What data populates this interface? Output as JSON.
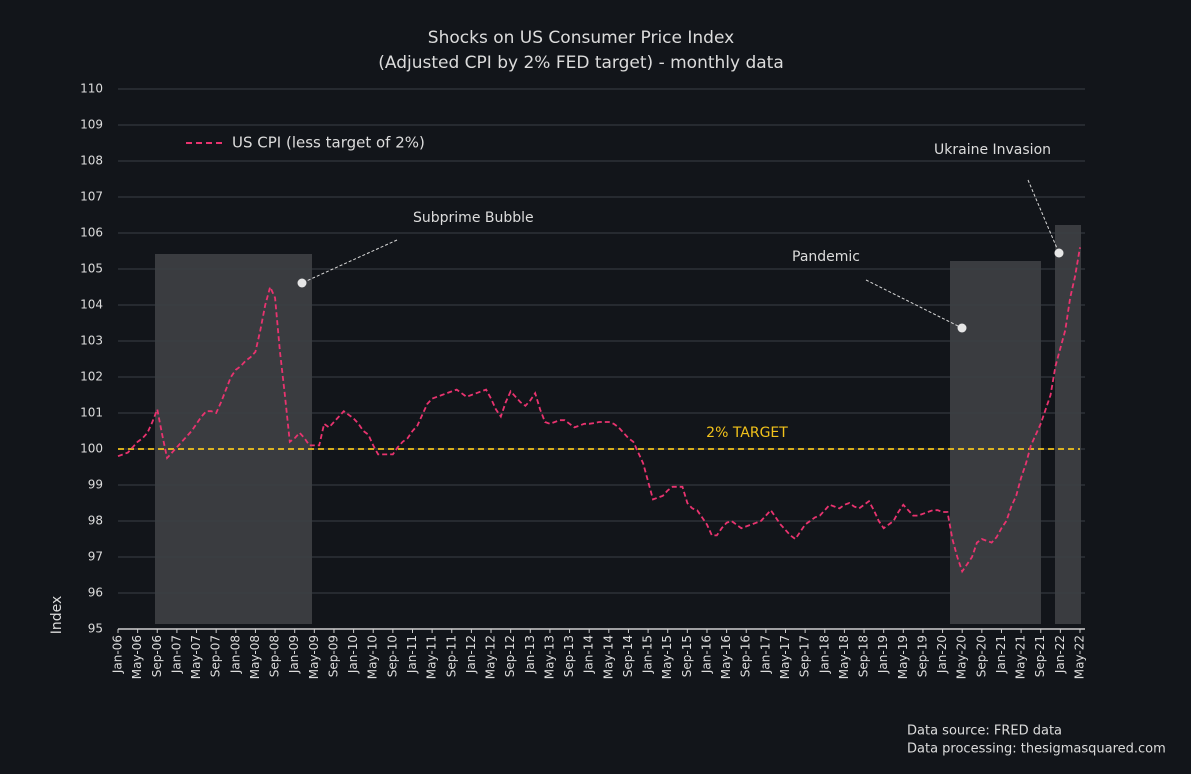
{
  "chart_data": {
    "type": "line",
    "title": "Shocks on US Consumer Price Index",
    "subtitle": "(Adjusted CPI by 2% FED target) - monthly data",
    "y_label": "Index",
    "categories": [
      "Jan-06",
      null,
      null,
      null,
      "May-06",
      null,
      null,
      null,
      "Sep-06",
      null,
      null,
      null,
      "Jan-07",
      null,
      null,
      null,
      "May-07",
      null,
      null,
      null,
      "Sep-07",
      null,
      null,
      null,
      "Jan-08",
      null,
      null,
      null,
      "May-08",
      null,
      null,
      null,
      "Sep-08",
      null,
      null,
      null,
      "Jan-09",
      null,
      null,
      null,
      "May-09",
      null,
      null,
      null,
      "Sep-09",
      null,
      null,
      null,
      "Jan-10",
      null,
      null,
      null,
      "May-10",
      null,
      null,
      null,
      "Sep-10",
      null,
      null,
      null,
      "Jan-11",
      null,
      null,
      null,
      "May-11",
      null,
      null,
      null,
      "Sep-11",
      null,
      null,
      null,
      "Jan-12",
      null,
      null,
      null,
      "May-12",
      null,
      null,
      null,
      "Sep-12",
      null,
      null,
      null,
      "Jan-13",
      null,
      null,
      null,
      "May-13",
      null,
      null,
      null,
      "Sep-13",
      null,
      null,
      null,
      "Jan-14",
      null,
      null,
      null,
      "May-14",
      null,
      null,
      null,
      "Sep-14",
      null,
      null,
      null,
      "Jan-15",
      null,
      null,
      null,
      "May-15",
      null,
      null,
      null,
      "Sep-15",
      null,
      null,
      null,
      "Jan-16",
      null,
      null,
      null,
      "May-16",
      null,
      null,
      null,
      "Sep-16",
      null,
      null,
      null,
      "Jan-17",
      null,
      null,
      null,
      "May-17",
      null,
      null,
      null,
      "Sep-17",
      null,
      null,
      null,
      "Jan-18",
      null,
      null,
      null,
      "May-18",
      null,
      null,
      null,
      "Sep-18",
      null,
      null,
      null,
      "Jan-19",
      null,
      null,
      null,
      "May-19",
      null,
      null,
      null,
      "Sep-19",
      null,
      null,
      null,
      "Jan-20",
      null,
      null,
      null,
      "May-20",
      null,
      null,
      null,
      "Sep-20",
      null,
      null,
      null,
      "Jan-21",
      null,
      null,
      null,
      "May-21",
      null,
      null,
      null,
      "Sep-21",
      null,
      null,
      null,
      "Jan-22",
      null,
      null,
      null,
      "May-22"
    ],
    "series": [
      {
        "name": "US CPI (less target of 2%)",
        "color": "#e8336f",
        "values": [
          99.8,
          99.85,
          99.9,
          100.05,
          100.2,
          100.3,
          100.45,
          100.75,
          101.1,
          100.4,
          99.75,
          99.9,
          100.05,
          100.2,
          100.35,
          100.5,
          100.7,
          100.9,
          101.05,
          101.05,
          101.0,
          101.3,
          101.65,
          102.0,
          102.2,
          102.3,
          102.45,
          102.55,
          102.7,
          103.3,
          104.0,
          104.5,
          104.2,
          102.7,
          101.5,
          100.2,
          100.3,
          100.45,
          100.3,
          100.1,
          100.1,
          100.1,
          100.7,
          100.6,
          100.75,
          100.9,
          101.05,
          100.95,
          100.85,
          100.7,
          100.5,
          100.4,
          100.1,
          99.85,
          99.85,
          99.85,
          99.85,
          100.05,
          100.2,
          100.3,
          100.5,
          100.65,
          100.95,
          101.25,
          101.4,
          101.45,
          101.5,
          101.55,
          101.6,
          101.65,
          101.55,
          101.45,
          101.5,
          101.55,
          101.6,
          101.65,
          101.4,
          101.1,
          100.9,
          101.3,
          101.6,
          101.45,
          101.3,
          101.2,
          101.35,
          101.55,
          101.1,
          100.75,
          100.7,
          100.75,
          100.8,
          100.8,
          100.7,
          100.6,
          100.65,
          100.7,
          100.7,
          100.72,
          100.75,
          100.75,
          100.75,
          100.7,
          100.6,
          100.45,
          100.3,
          100.2,
          99.9,
          99.6,
          99.1,
          98.6,
          98.65,
          98.7,
          98.85,
          98.95,
          98.95,
          98.95,
          98.5,
          98.35,
          98.3,
          98.1,
          97.9,
          97.6,
          97.6,
          97.8,
          97.95,
          98.0,
          97.9,
          97.8,
          97.85,
          97.9,
          97.95,
          98.0,
          98.15,
          98.3,
          98.1,
          97.9,
          97.75,
          97.6,
          97.5,
          97.7,
          97.9,
          98.0,
          98.1,
          98.15,
          98.3,
          98.45,
          98.4,
          98.35,
          98.45,
          98.5,
          98.4,
          98.35,
          98.45,
          98.55,
          98.3,
          98.0,
          97.8,
          97.9,
          98.0,
          98.25,
          98.45,
          98.3,
          98.15,
          98.15,
          98.2,
          98.25,
          98.3,
          98.3,
          98.25,
          98.25,
          97.5,
          97.0,
          96.6,
          96.8,
          97.0,
          97.4,
          97.5,
          97.45,
          97.4,
          97.55,
          97.8,
          98.0,
          98.4,
          98.7,
          99.2,
          99.6,
          100.1,
          100.4,
          100.7,
          101.1,
          101.5,
          102.3,
          102.8,
          103.3,
          104.2,
          104.8,
          105.6
        ]
      }
    ],
    "ylim": [
      95,
      110
    ],
    "yticks": [
      95,
      96,
      97,
      98,
      99,
      100,
      101,
      102,
      103,
      104,
      105,
      106,
      107,
      108,
      109,
      110
    ],
    "grid": true,
    "legend": "upper left",
    "target": {
      "value": 100,
      "label": "2% TARGET",
      "color": "#f2c21b"
    },
    "annotations": [
      "Subprime Bubble",
      "Pandemic",
      "Ukraine Invasion"
    ],
    "source": [
      "Data source: FRED data",
      "Data processing: thesigmasquared.com"
    ]
  }
}
